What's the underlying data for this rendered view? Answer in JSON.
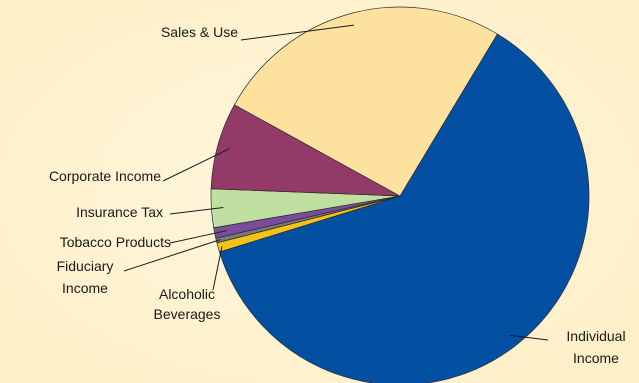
{
  "chart_data": {
    "type": "pie",
    "title": "",
    "legend": "none",
    "slices": [
      {
        "label": "Individual Income",
        "lines": [
          "Individual",
          "Income"
        ],
        "value": 61.6,
        "color": "#0350a3"
      },
      {
        "label": "Alcoholic Beverages",
        "lines": [
          "Alcoholic",
          "Beverages"
        ],
        "value": 0.8,
        "color": "#f5c21b"
      },
      {
        "label": "Fiduciary Income",
        "lines": [
          "Fiduciary",
          "Income"
        ],
        "value": 0.4,
        "color": "#7a7a7a"
      },
      {
        "label": "Tobacco Products",
        "lines": [
          "Tobacco Products"
        ],
        "value": 0.9,
        "color": "#7a4d9c"
      },
      {
        "label": "Insurance Tax",
        "lines": [
          "Insurance Tax"
        ],
        "value": 3.3,
        "color": "#bfe0a0"
      },
      {
        "label": "Corporate Income",
        "lines": [
          "Corporate Income"
        ],
        "value": 7.4,
        "color": "#943a68"
      },
      {
        "label": "Sales & Use",
        "lines": [
          "Sales & Use"
        ],
        "value": 25.6,
        "color": "#fde29f"
      }
    ]
  }
}
